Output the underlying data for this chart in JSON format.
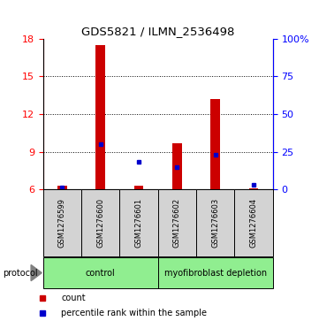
{
  "title": "GDS5821 / ILMN_2536498",
  "samples": [
    "GSM1276599",
    "GSM1276600",
    "GSM1276601",
    "GSM1276602",
    "GSM1276603",
    "GSM1276604"
  ],
  "red_bars": [
    6.3,
    17.5,
    6.3,
    9.7,
    13.2,
    6.1
  ],
  "blue_markers_pct": [
    1,
    30,
    18,
    15,
    23,
    3
  ],
  "ymin": 6,
  "ymax": 18,
  "yticks_left": [
    6,
    9,
    12,
    15,
    18
  ],
  "yticks_right": [
    0,
    25,
    50,
    75,
    100
  ],
  "protocol_groups": [
    {
      "label": "control",
      "start": 0,
      "end": 2,
      "color": "#90EE90"
    },
    {
      "label": "myofibroblast depletion",
      "start": 3,
      "end": 5,
      "color": "#90EE90"
    }
  ],
  "bar_color": "#CC0000",
  "marker_color": "#0000CC",
  "bar_width": 0.25,
  "background_table": "#D3D3D3",
  "legend_items": [
    "count",
    "percentile rank within the sample"
  ]
}
